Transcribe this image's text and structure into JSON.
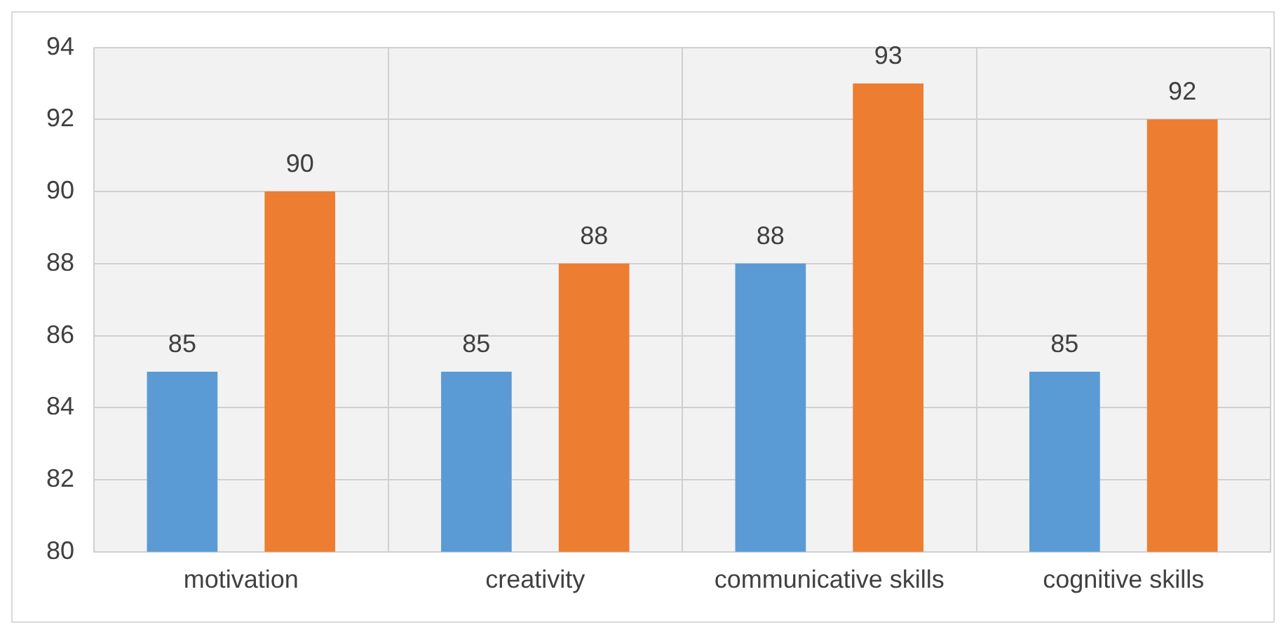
{
  "chart_data": {
    "type": "bar",
    "categories": [
      "motivation",
      "creativity",
      "communicative skills",
      "cognitive skills"
    ],
    "series": [
      {
        "color": "#5b9bd5",
        "values": [
          85,
          85,
          88,
          85
        ]
      },
      {
        "color": "#ed7d31",
        "values": [
          90,
          88,
          93,
          92
        ]
      }
    ],
    "ylim": [
      80,
      94
    ],
    "yticks": [
      80,
      82,
      84,
      86,
      88,
      90,
      92,
      94
    ],
    "grid": true,
    "legend": false,
    "data_labels": true
  }
}
